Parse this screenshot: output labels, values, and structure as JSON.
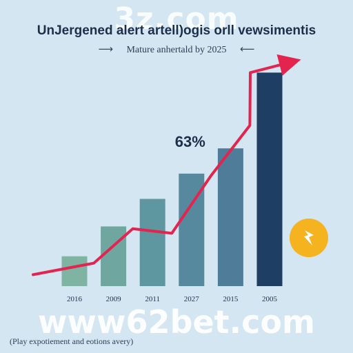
{
  "watermarks": {
    "top": "3z.com",
    "bottom": "www62bet.com"
  },
  "header": {
    "title": "UnJergened alert artell)ogis orll vewsimentis",
    "subtitle": "Mature anhertald by 2025"
  },
  "footnote": "(Play expotiement and eotions avery)",
  "colors": {
    "background": "#d4e6f1",
    "line": "#e2244f",
    "bars": [
      "#7fb3a2",
      "#6fa7a0",
      "#5e979f",
      "#56899e",
      "#4f7c99",
      "#1e3f63"
    ],
    "badge": "#f4b31f"
  },
  "icons": {
    "badge": "lightning-bolt-icon",
    "arrows": [
      "arrow-right-icon",
      "arrow-left-icon"
    ]
  },
  "chart_data": {
    "type": "bar",
    "categories": [
      "2016",
      "2009",
      "2011",
      "2027",
      "2015",
      "2005"
    ],
    "values": [
      1.3,
      2.6,
      3.8,
      4.9,
      6.0,
      9.3
    ],
    "ylim": [
      0,
      10
    ],
    "line_series": {
      "type": "line",
      "values": [
        1.0,
        2.5,
        2.3,
        4.8,
        7.0,
        9.3
      ],
      "end_arrow": true
    },
    "annotation": {
      "text": "63%",
      "category_index": 3
    },
    "grid": false,
    "legend": "none",
    "xlabel": "",
    "ylabel": ""
  }
}
